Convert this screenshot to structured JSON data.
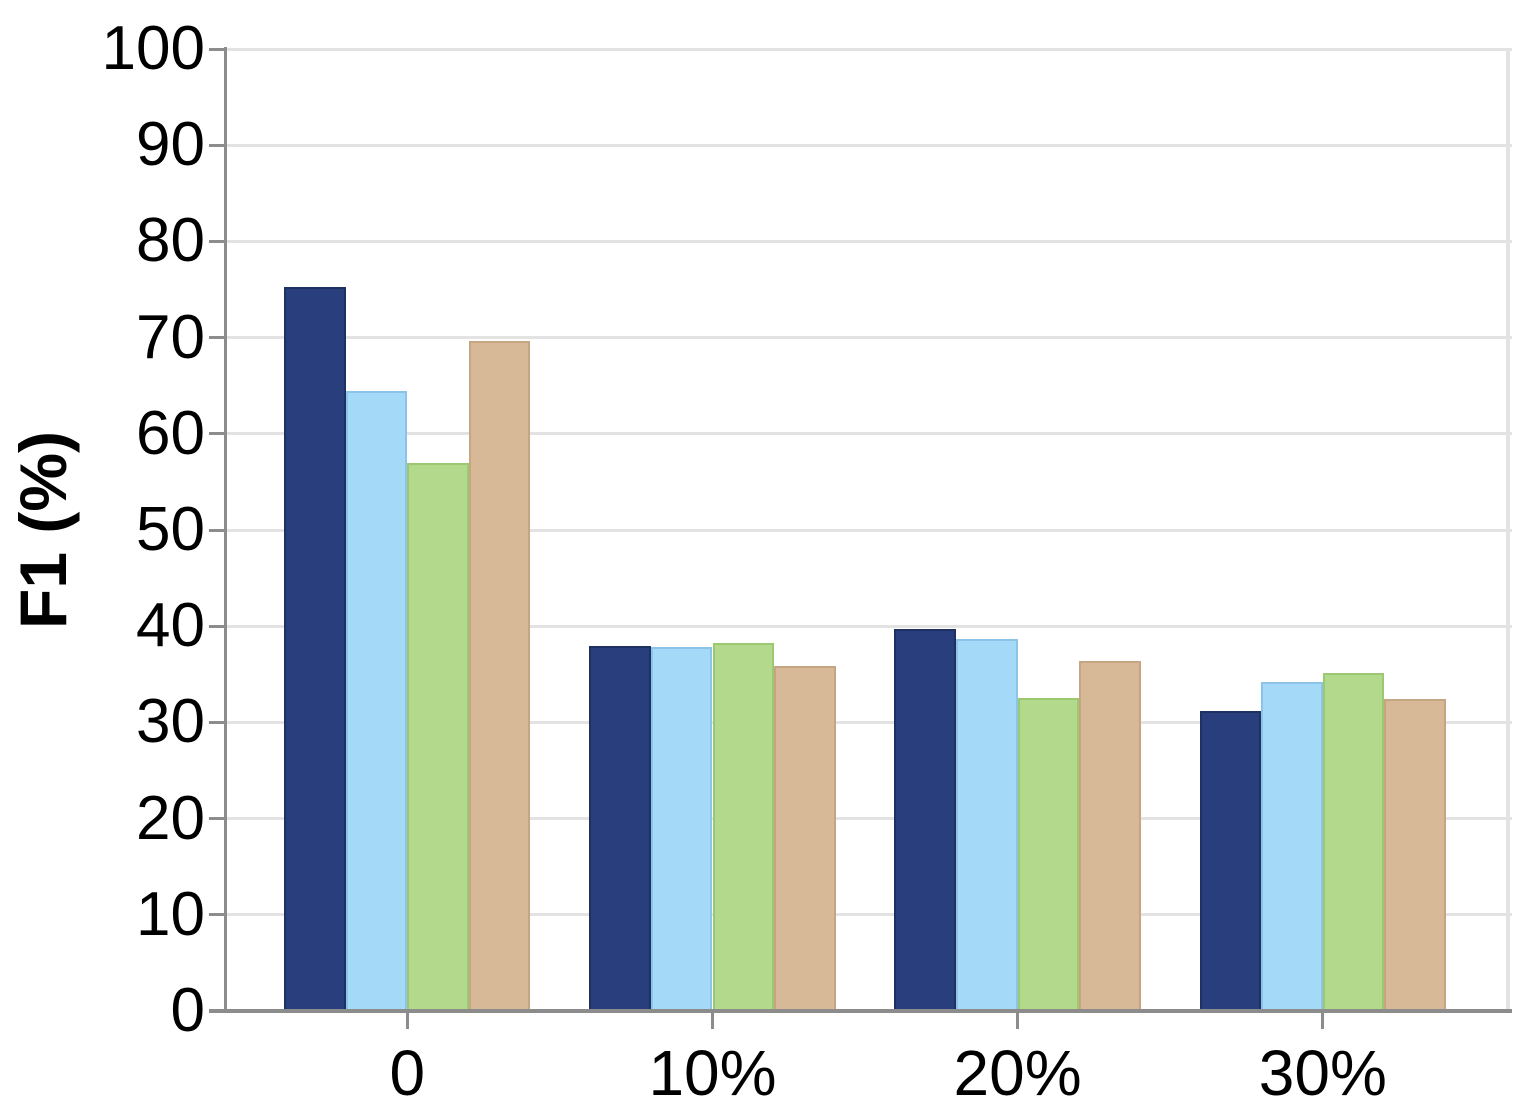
{
  "chart_data": {
    "type": "bar",
    "title": "",
    "xlabel": "",
    "ylabel": "F1 (%)",
    "ylim": [
      0,
      100
    ],
    "ytick_interval": 10,
    "yticks": [
      "0",
      "10",
      "20",
      "30",
      "40",
      "50",
      "60",
      "70",
      "80",
      "90",
      "100"
    ],
    "categories": [
      "0",
      "10%",
      "20%",
      "30%"
    ],
    "series": [
      {
        "name": "navy",
        "color": "#283e7d",
        "edge_color": "#1f3160",
        "values": [
          75.3,
          37.9,
          39.7,
          31.2
        ]
      },
      {
        "name": "light-blue",
        "color": "#a4d9f8",
        "edge_color": "#8cc4e9",
        "values": [
          64.4,
          37.8,
          38.7,
          34.2
        ]
      },
      {
        "name": "green",
        "color": "#b3da8c",
        "edge_color": "#9cc871",
        "values": [
          57.0,
          38.3,
          32.5,
          35.1
        ]
      },
      {
        "name": "tan",
        "color": "#d7b897",
        "edge_color": "#c5a582",
        "values": [
          69.6,
          35.9,
          36.4,
          32.4
        ]
      }
    ],
    "legend": "none",
    "grid": "horizontal",
    "grid_color": "#e3e3e3",
    "axis_color": "#8c8c8c",
    "background": "#ffffff",
    "text_color": "#000000"
  }
}
